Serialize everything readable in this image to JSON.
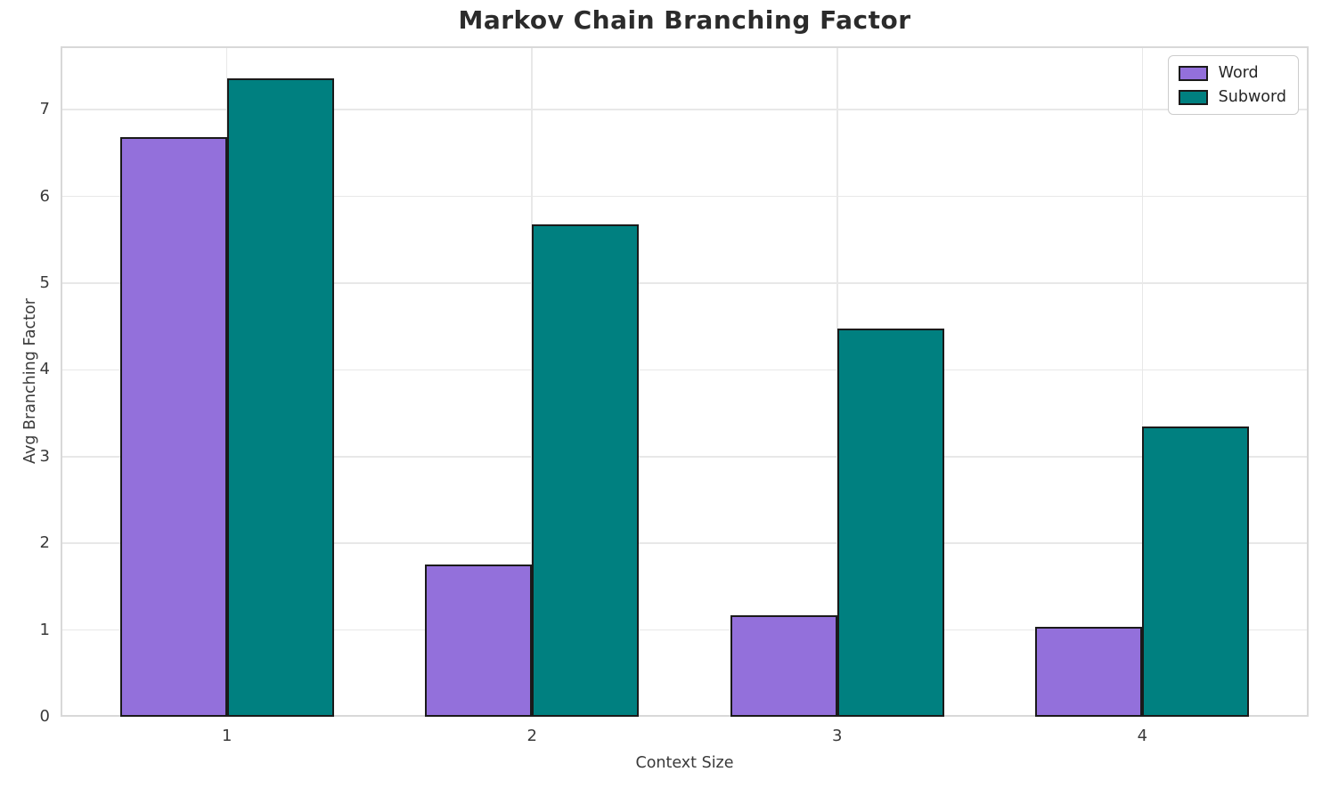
{
  "title": "Markov Chain Branching Factor",
  "chart_data": {
    "type": "bar",
    "title": "Markov Chain Branching Factor",
    "xlabel": "Context Size",
    "ylabel": "Avg Branching Factor",
    "categories": [
      "1",
      "2",
      "3",
      "4"
    ],
    "series": [
      {
        "name": "Word",
        "color": "#9370DB",
        "values": [
          6.68,
          1.76,
          1.17,
          1.04
        ]
      },
      {
        "name": "Subword",
        "color": "#008080",
        "values": [
          7.36,
          5.68,
          4.48,
          3.35
        ]
      }
    ],
    "yticks": [
      0,
      1,
      2,
      3,
      4,
      5,
      6,
      7
    ],
    "ylim": [
      0,
      7.73
    ],
    "xlim": [
      0.455,
      4.545
    ],
    "bar_width": 0.35,
    "bar_edge_color": "#1a1a1a",
    "grid": true,
    "legend_position": "upper right",
    "colors": {
      "grid": "#e8e8e8",
      "spine": "#d8d8d8",
      "tick_text": "#3a3a3a",
      "title_text": "#2b2b2b",
      "background": "#ffffff"
    }
  }
}
